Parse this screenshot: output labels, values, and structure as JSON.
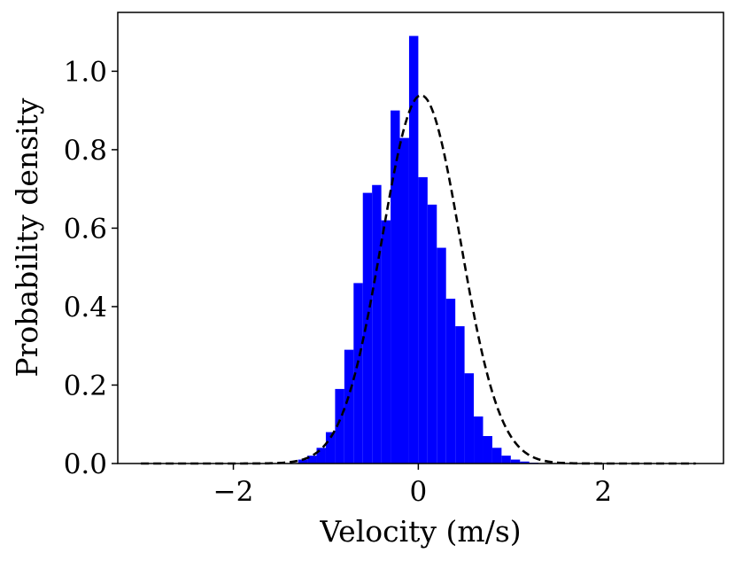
{
  "chart_data": {
    "type": "bar",
    "title": "",
    "xlabel": "Velocity (m/s)",
    "ylabel": "Probability density",
    "xlim": [
      -3.25,
      3.3
    ],
    "ylim": [
      0,
      1.15
    ],
    "x_ticks": [
      -2,
      0,
      2
    ],
    "x_tick_labels": [
      "−2",
      "0",
      "2"
    ],
    "y_ticks": [
      0.0,
      0.2,
      0.4,
      0.6,
      0.8,
      1.0
    ],
    "y_tick_labels": [
      "0.0",
      "0.2",
      "0.4",
      "0.6",
      "0.8",
      "1.0"
    ],
    "grid": false,
    "bar_color": "#0000ff",
    "curve_color": "#000000",
    "bin_width": 0.1,
    "histogram": {
      "bin_left_edges": [
        -1.3,
        -1.2,
        -1.1,
        -1.0,
        -0.9,
        -0.8,
        -0.7,
        -0.6,
        -0.5,
        -0.4,
        -0.3,
        -0.2,
        -0.1,
        0.0,
        0.1,
        0.2,
        0.3,
        0.4,
        0.5,
        0.6,
        0.7,
        0.8,
        0.9,
        1.0,
        1.1,
        1.2
      ],
      "values": [
        0.01,
        0.02,
        0.04,
        0.08,
        0.19,
        0.29,
        0.46,
        0.69,
        0.71,
        0.62,
        0.9,
        0.83,
        1.09,
        0.73,
        0.66,
        0.55,
        0.42,
        0.35,
        0.23,
        0.12,
        0.07,
        0.04,
        0.02,
        0.01,
        0.005,
        0.002
      ]
    },
    "fit_curve": {
      "style": "dashed",
      "distribution": "normal",
      "mean": 0.03,
      "std": 0.425,
      "x_range": [
        -3.0,
        3.0
      ]
    }
  }
}
